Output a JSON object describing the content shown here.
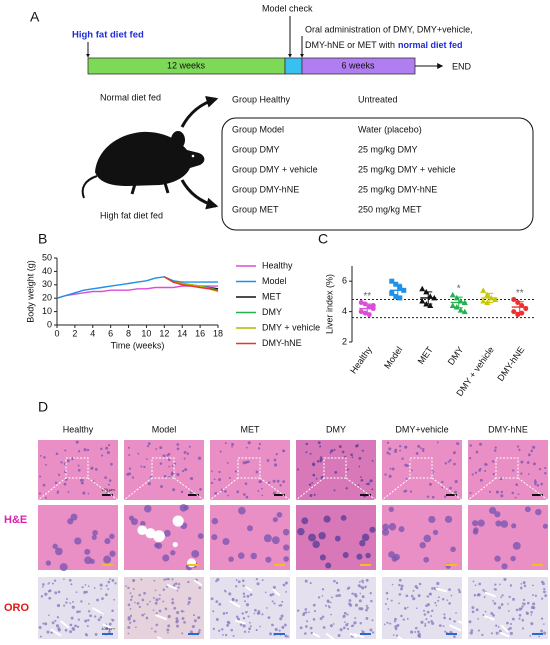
{
  "panel_a": {
    "label": "A",
    "timeline": {
      "start_label": "High fat diet fed",
      "model_check": "Model check",
      "treatment_line1": "Oral administration of DMY, DMY+vehicle,",
      "treatment_line2": "DMY-hNE or MET with",
      "treatment_highlight": "normal diet fed",
      "phase1": "12 weeks",
      "phase2": "6 weeks",
      "end": "END"
    },
    "normal_diet": "Normal diet fed",
    "high_fat_diet": "High fat diet fed",
    "groups": [
      [
        "Group Healthy",
        "Untreated"
      ],
      [
        "Group Model",
        "Water (placebo)"
      ],
      [
        "Group DMY",
        "25 mg/kg DMY"
      ],
      [
        "Group DMY + vehicle",
        "25 mg/kg DMY + vehicle"
      ],
      [
        "Group DMY-hNE",
        "25 mg/kg DMY-hNE"
      ],
      [
        "Group MET",
        "250 mg/kg MET"
      ]
    ]
  },
  "chart_data": [
    {
      "panel": "B",
      "type": "line",
      "xlabel": "Time (weeks)",
      "ylabel": "Body weight (g)",
      "x": [
        0,
        1,
        2,
        3,
        4,
        5,
        6,
        7,
        8,
        9,
        10,
        11,
        12,
        13,
        14,
        15,
        16,
        17,
        18
      ],
      "xlim": [
        0,
        18
      ],
      "xticks": [
        0,
        2,
        4,
        6,
        8,
        10,
        12,
        14,
        16,
        18
      ],
      "ylim": [
        0,
        50
      ],
      "yticks": [
        0,
        10,
        20,
        30,
        40,
        50
      ],
      "legend": "right",
      "series": [
        {
          "name": "Healthy",
          "color": "#d94fd9",
          "values": [
            20,
            22,
            23,
            24,
            25,
            25,
            26,
            26,
            26,
            27,
            27,
            28,
            28,
            28,
            29,
            29,
            29,
            29,
            29
          ]
        },
        {
          "name": "Model",
          "color": "#1e90e8",
          "values": [
            20,
            22,
            24,
            26,
            27,
            28,
            29,
            30,
            31,
            32,
            33,
            35,
            36,
            33,
            32,
            32,
            32,
            32,
            32
          ]
        },
        {
          "name": "MET",
          "color": "#111111",
          "values": [
            null,
            null,
            null,
            null,
            null,
            null,
            null,
            null,
            null,
            null,
            null,
            null,
            36,
            32,
            31,
            30,
            29,
            28,
            27
          ]
        },
        {
          "name": "DMY",
          "color": "#22b14c",
          "values": [
            null,
            null,
            null,
            null,
            null,
            null,
            null,
            null,
            null,
            null,
            null,
            null,
            36,
            32,
            31,
            30,
            29,
            28,
            26
          ]
        },
        {
          "name": "DMY + vehicle",
          "color": "#b8b800",
          "values": [
            null,
            null,
            null,
            null,
            null,
            null,
            null,
            null,
            null,
            null,
            null,
            null,
            36,
            32,
            31,
            30,
            29,
            27,
            25
          ]
        },
        {
          "name": "DMY-hNE",
          "color": "#ee3030",
          "values": [
            null,
            null,
            null,
            null,
            null,
            null,
            null,
            null,
            null,
            null,
            null,
            null,
            36,
            32,
            30,
            29,
            28,
            27,
            26
          ]
        }
      ]
    },
    {
      "panel": "C",
      "type": "dot",
      "ylabel": "Liver index (%)",
      "categories": [
        "Healthy",
        "Model",
        "MET",
        "DMY",
        "DMY + vehicle",
        "DMY-hNE"
      ],
      "ylim": [
        2,
        7
      ],
      "yticks": [
        2,
        4,
        6
      ],
      "reference_lines": [
        4.8,
        3.6
      ],
      "colors": [
        "#d94fd9",
        "#1e90e8",
        "#111111",
        "#22b14c",
        "#c8c800",
        "#ee3030"
      ],
      "markers": [
        "circle",
        "square",
        "triangle",
        "triangle",
        "triangle",
        "circle"
      ],
      "values": [
        [
          4.6,
          4.5,
          4.3,
          4.2,
          4.0,
          3.9,
          3.8,
          4.4
        ],
        [
          6.0,
          5.8,
          5.6,
          5.4,
          5.2,
          5.0,
          4.9
        ],
        [
          5.5,
          5.3,
          5.0,
          4.9,
          4.7,
          4.5,
          4.4
        ],
        [
          5.1,
          4.9,
          4.7,
          4.6,
          4.4,
          4.3,
          4.1,
          4.0
        ],
        [
          5.4,
          5.1,
          4.9,
          4.8,
          4.7,
          4.6
        ],
        [
          4.8,
          4.6,
          4.4,
          4.2,
          4.0,
          3.8,
          3.9
        ]
      ],
      "means": [
        4.2,
        5.4,
        4.9,
        4.6,
        4.9,
        4.3
      ],
      "sds": [
        0.3,
        0.4,
        0.4,
        0.35,
        0.3,
        0.35
      ],
      "annotations": [
        "**",
        null,
        null,
        "*",
        null,
        "**"
      ]
    }
  ],
  "panel_d": {
    "label": "D",
    "columns": [
      "Healthy",
      "Model",
      "MET",
      "DMY",
      "DMY+vehicle",
      "DMY-hNE"
    ],
    "rows": [
      "H&E",
      "ORO"
    ],
    "scale_bar": "100 μm"
  }
}
